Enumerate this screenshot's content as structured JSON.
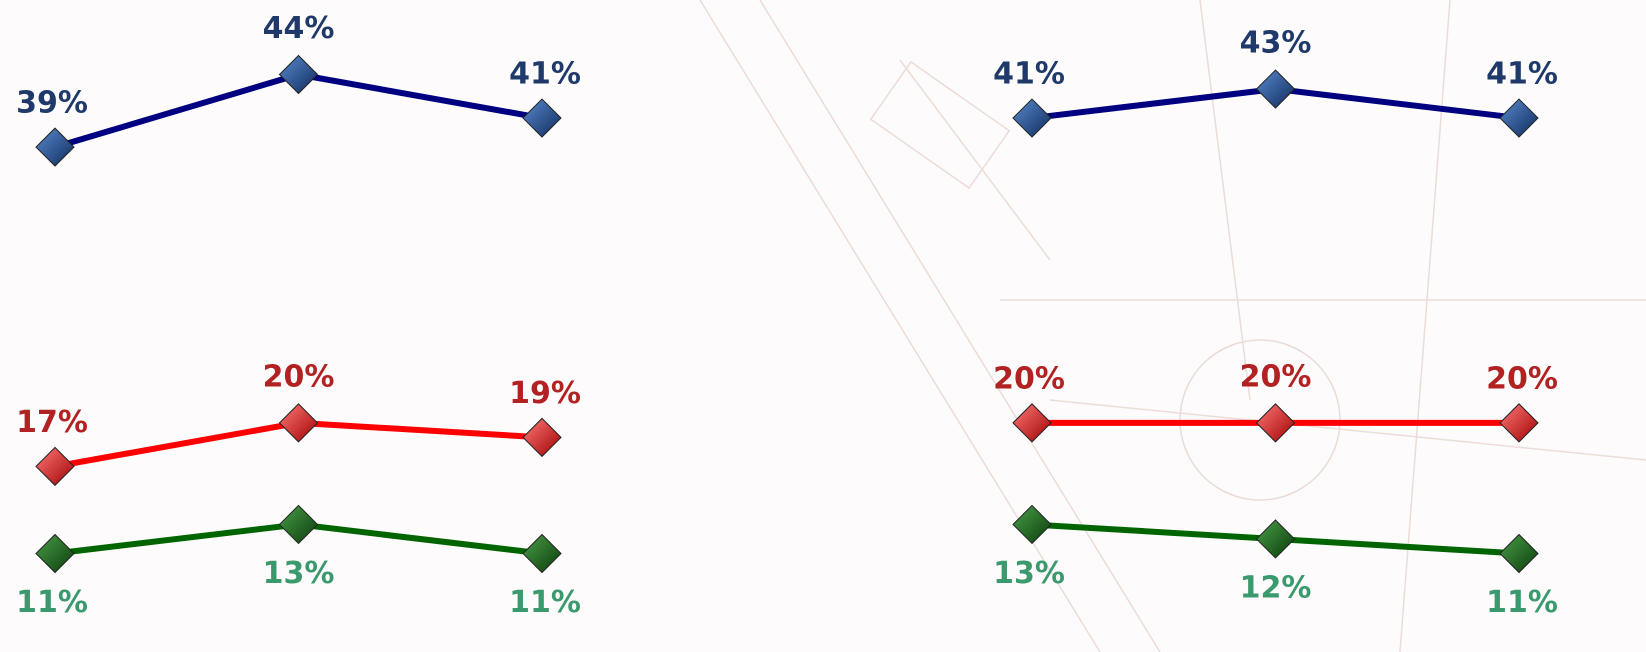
{
  "chart_data": [
    {
      "type": "line",
      "categories": [
        null,
        null,
        null
      ],
      "ylim": [
        10,
        45
      ],
      "series": [
        {
          "color": "#000080",
          "values": [
            39,
            44,
            41
          ],
          "value_labels": [
            "39%",
            "44%",
            "41%"
          ]
        },
        {
          "color": "#ff0000",
          "values": [
            17,
            20,
            19
          ],
          "value_labels": [
            "17%",
            "20%",
            "19%"
          ]
        },
        {
          "color": "#006400",
          "values": [
            11,
            13,
            11
          ],
          "value_labels": [
            "11%",
            "13%",
            "11%"
          ]
        }
      ]
    },
    {
      "type": "line",
      "categories": [
        null,
        null,
        null
      ],
      "ylim": [
        10,
        45
      ],
      "series": [
        {
          "color": "#000080",
          "values": [
            41,
            43,
            41
          ],
          "value_labels": [
            "41%",
            "43%",
            "41%"
          ]
        },
        {
          "color": "#ff0000",
          "values": [
            20,
            20,
            20
          ],
          "value_labels": [
            "20%",
            "20%",
            "20%"
          ]
        },
        {
          "color": "#006400",
          "values": [
            13,
            12,
            11
          ],
          "value_labels": [
            "13%",
            "12%",
            "11%"
          ]
        }
      ]
    }
  ]
}
